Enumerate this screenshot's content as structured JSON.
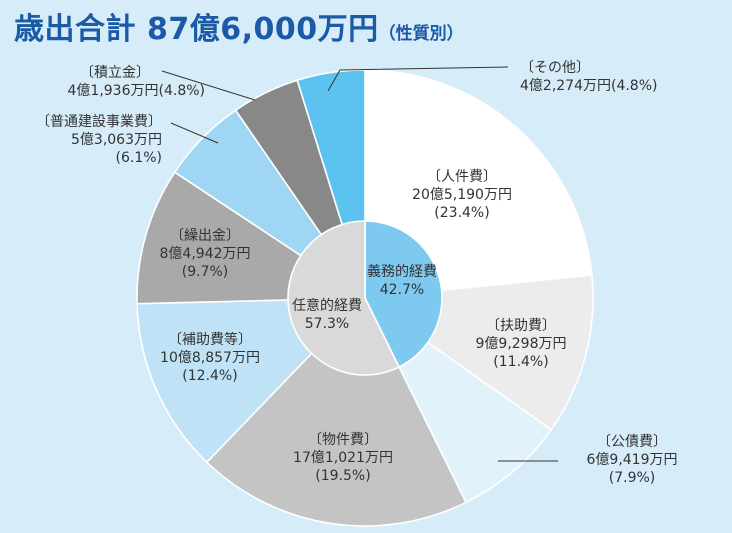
{
  "title": {
    "main": "歳出合計 87億6,000万円",
    "sub": "（性質別）"
  },
  "chart_data": {
    "type": "pie",
    "title": "歳出合計 87億6,000万円（性質別）",
    "outer": [
      {
        "name": "〔人件費〕",
        "amount": "20億5,190万円",
        "pct_label": "(23.4%)",
        "value": 23.4,
        "color": "#ffffff"
      },
      {
        "name": "〔扶助費〕",
        "amount": "9億9,298万円",
        "pct_label": "(11.4%)",
        "value": 11.4,
        "color": "#ececec"
      },
      {
        "name": "〔公債費〕",
        "amount": "6億9,419万円",
        "pct_label": "(7.9%)",
        "value": 7.9,
        "color": "#e2f2fb"
      },
      {
        "name": "〔物件費〕",
        "amount": "17億1,021万円",
        "pct_label": "(19.5%)",
        "value": 19.5,
        "color": "#c4c4c4"
      },
      {
        "name": "〔補助費等〕",
        "amount": "10億8,857万円",
        "pct_label": "(12.4%)",
        "value": 12.4,
        "color": "#bfe2f6"
      },
      {
        "name": "〔繰出金〕",
        "amount": "8億4,942万円",
        "pct_label": "(9.7%)",
        "value": 9.7,
        "color": "#a9a9a9"
      },
      {
        "name": "〔普通建設事業費〕",
        "amount": "5億3,063万円",
        "pct_label": "(6.1%)",
        "value": 6.1,
        "color": "#9fd6f3"
      },
      {
        "name": "〔積立金〕",
        "amount": "4億1,936万円",
        "pct_label": "(4.8%)",
        "value": 4.8,
        "color": "#888888"
      },
      {
        "name": "〔その他〕",
        "amount": "4億2,274万円",
        "pct_label": "(4.8%)",
        "value": 4.8,
        "color": "#5cc3f0"
      }
    ],
    "inner": [
      {
        "name": "義務的経費",
        "pct_label": "42.7%",
        "value": 42.7,
        "color": "#7ec9f0"
      },
      {
        "name": "任意的経費",
        "pct_label": "57.3%",
        "value": 57.3,
        "color": "#d9d9d9"
      }
    ]
  }
}
